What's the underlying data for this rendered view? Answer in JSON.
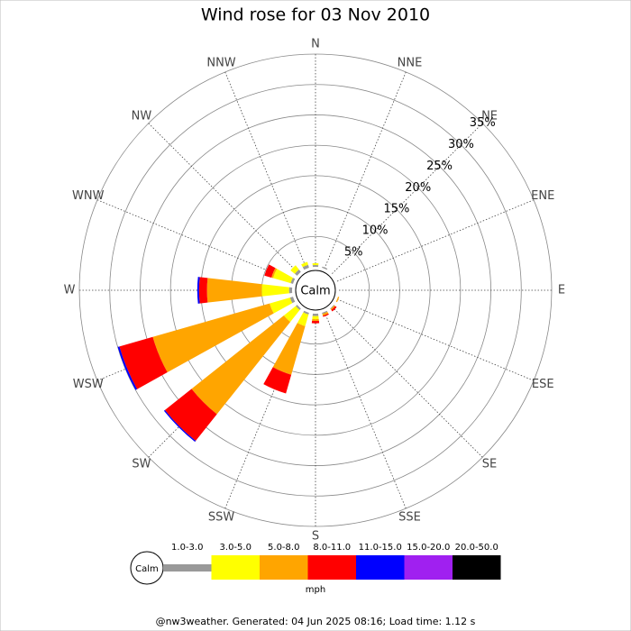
{
  "chart_data": {
    "type": "windrose",
    "title": "Wind rose for 03 Nov 2010",
    "directions": [
      "N",
      "NNE",
      "NE",
      "ENE",
      "E",
      "ESE",
      "SE",
      "SSE",
      "S",
      "SSW",
      "SW",
      "WSW",
      "W",
      "WNW",
      "NW",
      "NNW"
    ],
    "calm_label": "Calm",
    "unit": "mph",
    "rlim": [
      0,
      35
    ],
    "rticks": [
      {
        "value": 5,
        "label": "5%"
      },
      {
        "value": 10,
        "label": "10%"
      },
      {
        "value": 15,
        "label": "15%"
      },
      {
        "value": 20,
        "label": "20%"
      },
      {
        "value": 25,
        "label": "25%"
      },
      {
        "value": 30,
        "label": "30%"
      },
      {
        "value": 35,
        "label": "35%"
      }
    ],
    "series": [
      {
        "name": "1.0-3.0",
        "color": "#999999",
        "values": [
          0.3,
          0.2,
          0,
          0,
          0,
          0,
          0.1,
          0.2,
          0.4,
          0.3,
          0.3,
          0.5,
          0.5,
          0.4,
          0.5,
          0.5
        ]
      },
      {
        "name": "3.0-5.0",
        "color": "#ffff00",
        "values": [
          0.3,
          0,
          0,
          0,
          0,
          0,
          0,
          0,
          0.5,
          2,
          2.5,
          3.5,
          4.5,
          3,
          0.9,
          0.5
        ]
      },
      {
        "name": "5.0-8.0",
        "color": "#ffa500",
        "values": [
          0,
          0,
          0,
          0,
          0,
          0.2,
          0.2,
          0.3,
          0.3,
          8.3,
          19.4,
          20,
          9,
          0.3,
          0,
          0
        ]
      },
      {
        "name": "8.0-11.0",
        "color": "#ff0000",
        "values": [
          0,
          0,
          0,
          0,
          0,
          0,
          0.3,
          0.2,
          0.4,
          3.2,
          5.6,
          5.7,
          1.3,
          1.2,
          0,
          0
        ]
      },
      {
        "name": "11.0-15.0",
        "color": "#0000ff",
        "values": [
          0,
          0,
          0,
          0,
          0,
          0,
          0,
          0,
          0,
          0,
          0.2,
          0.3,
          0.3,
          0,
          0,
          0
        ]
      },
      {
        "name": "15.0-20.0",
        "color": "#a020f0",
        "values": [
          0,
          0,
          0,
          0,
          0,
          0,
          0,
          0,
          0,
          0,
          0,
          0,
          0,
          0,
          0,
          0
        ]
      },
      {
        "name": "20.0-50.0",
        "color": "#000000",
        "values": [
          0,
          0,
          0,
          0,
          0,
          0,
          0,
          0,
          0,
          0,
          0,
          0,
          0,
          0,
          0,
          0
        ]
      }
    ],
    "footer": "@nw3weather. Generated: 04 Jun 2025 08:16; Load time: 1.12 s"
  }
}
